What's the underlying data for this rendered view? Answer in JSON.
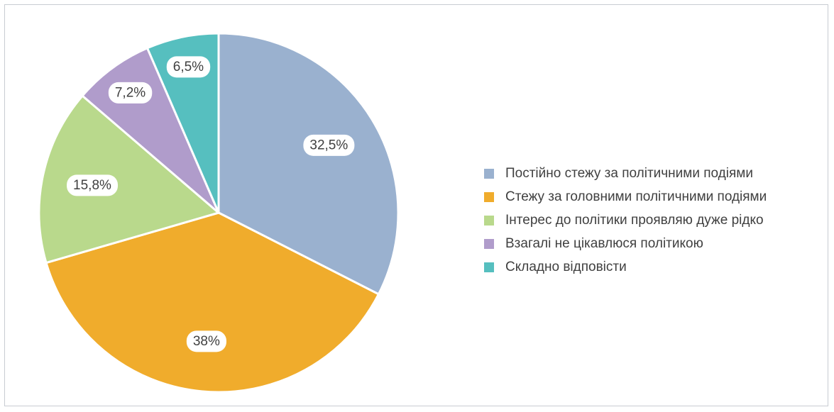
{
  "chart_data": {
    "type": "pie",
    "categories": [
      "Постійно стежу за політичними подіями",
      "Стежу за головними політичними подіями",
      "Інтерес до політики проявляю дуже рідко",
      "Взагалі не цікавлюся політикою",
      "Складно відповісти"
    ],
    "values": [
      32.5,
      38,
      15.8,
      7.2,
      6.5
    ],
    "value_labels": [
      "32,5%",
      "38%",
      "15,8%",
      "7,2%",
      "6,5%"
    ],
    "colors": [
      "#9ab1cf",
      "#f0ac2c",
      "#b9d98c",
      "#b09ccb",
      "#56bfbf"
    ],
    "legend": "right"
  }
}
